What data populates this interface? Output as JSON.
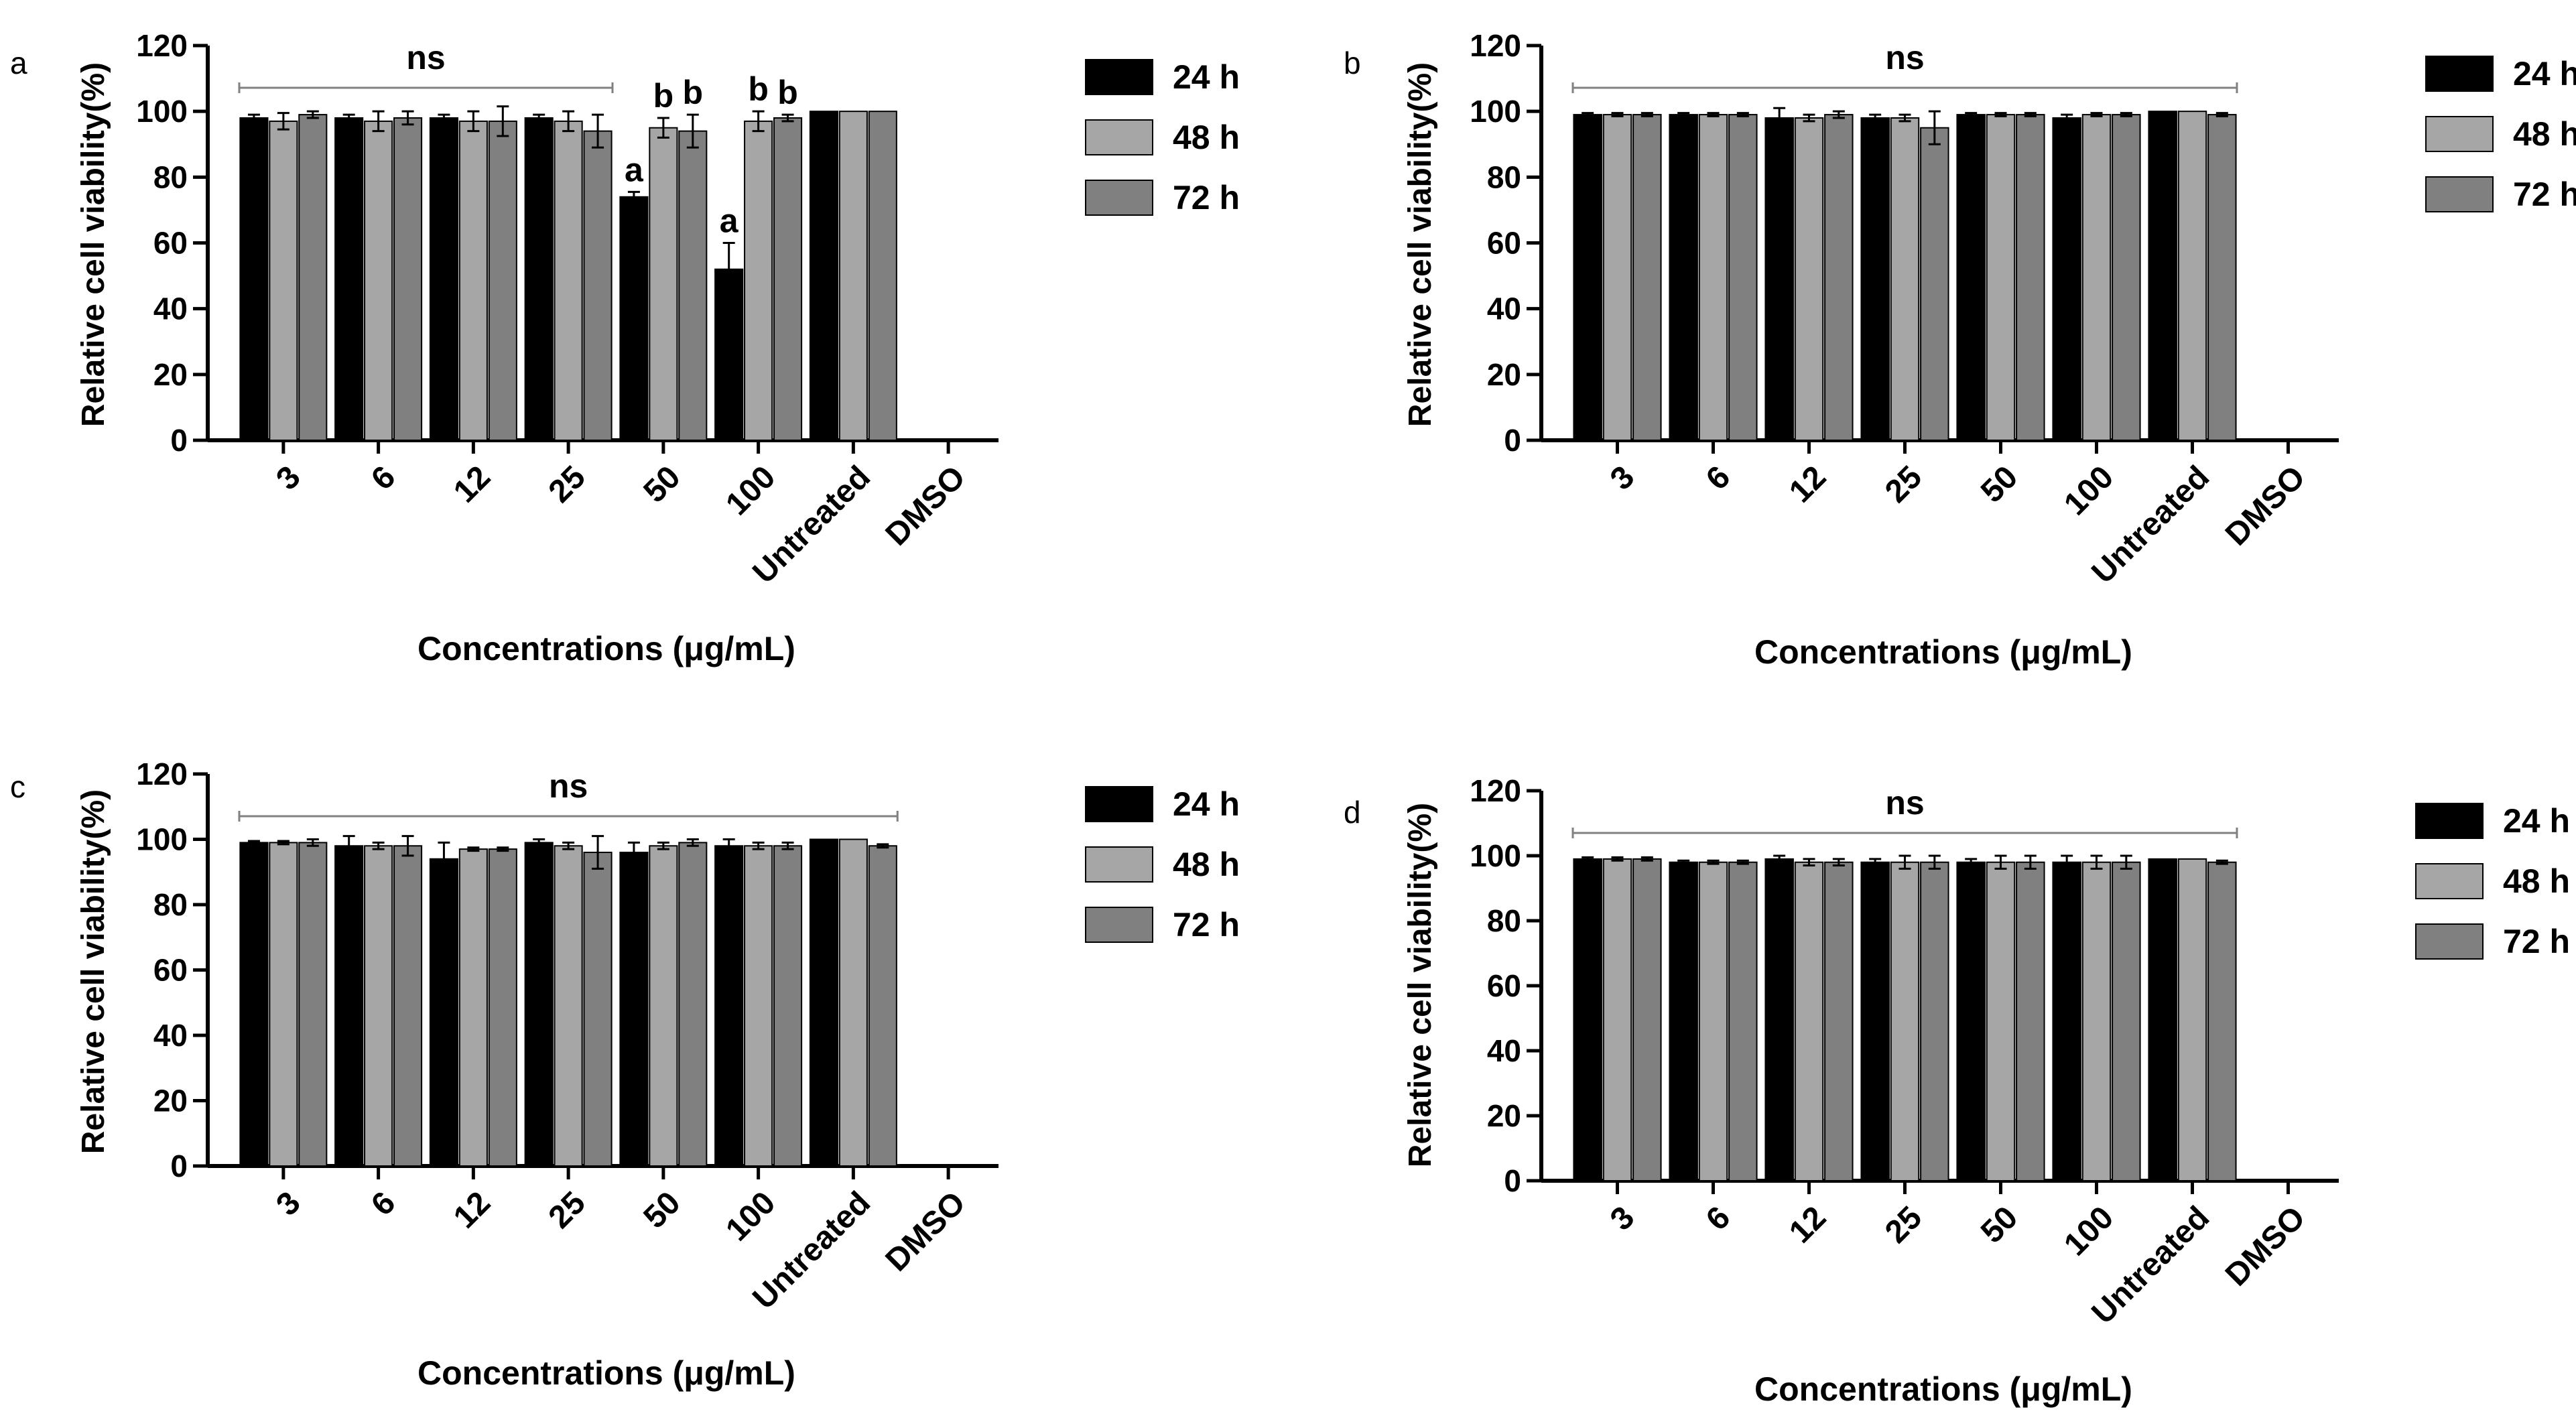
{
  "legend_labels": [
    "24 h",
    "48 h",
    "72 h"
  ],
  "colors": {
    "24 h": "#000000",
    "48 h": "#a6a6a6",
    "72 h": "#808080",
    "axis": "#000000",
    "bracket": "#808080"
  },
  "chart_data": [
    {
      "panel_label": "a",
      "type": "bar",
      "xlabel": "Concentrations (μg/mL)",
      "ylabel": "Relative cell viability(%)",
      "ylim": [
        0,
        120
      ],
      "yticks": [
        0,
        20,
        40,
        60,
        80,
        100,
        120
      ],
      "categories": [
        "3",
        "6",
        "12",
        "25",
        "50",
        "100",
        "Untreated",
        "DMSO"
      ],
      "series": [
        {
          "name": "24 h",
          "values": [
            98,
            98,
            98,
            98,
            74,
            52,
            100,
            null
          ],
          "errors": [
            1,
            1,
            1,
            1,
            1.5,
            8,
            0,
            null
          ]
        },
        {
          "name": "48 h",
          "values": [
            97,
            97,
            97,
            97,
            95,
            97,
            100,
            null
          ],
          "errors": [
            2.5,
            3,
            3,
            3,
            3,
            3,
            0,
            null
          ]
        },
        {
          "name": "72 h",
          "values": [
            99,
            98,
            97,
            94,
            94,
            98,
            100,
            null
          ],
          "errors": [
            1,
            2,
            4.5,
            5,
            5,
            1,
            0,
            null
          ]
        }
      ],
      "significance": {
        "text": "ns",
        "from_category": 0,
        "to_category": 3
      },
      "annotations": [
        {
          "text": "a",
          "category": 4,
          "series": 0
        },
        {
          "text": "b",
          "category": 4,
          "series": 1
        },
        {
          "text": "b",
          "category": 4,
          "series": 2
        },
        {
          "text": "a",
          "category": 5,
          "series": 0
        },
        {
          "text": "b",
          "category": 5,
          "series": 1
        },
        {
          "text": "b",
          "category": 5,
          "series": 2
        }
      ]
    },
    {
      "panel_label": "b",
      "type": "bar",
      "xlabel": "Concentrations (μg/mL)",
      "ylabel": "Relative cell viability(%)",
      "ylim": [
        0,
        120
      ],
      "yticks": [
        0,
        20,
        40,
        60,
        80,
        100,
        120
      ],
      "categories": [
        "3",
        "6",
        "12",
        "25",
        "50",
        "100",
        "Untreated",
        "DMSO"
      ],
      "series": [
        {
          "name": "24 h",
          "values": [
            99,
            99,
            98,
            98,
            99,
            98,
            100,
            null
          ],
          "errors": [
            0.5,
            0.5,
            3,
            1,
            0.5,
            1,
            0,
            null
          ]
        },
        {
          "name": "48 h",
          "values": [
            99,
            99,
            98,
            98,
            99,
            99,
            100,
            null
          ],
          "errors": [
            0.5,
            0.5,
            1,
            1,
            0.5,
            0.5,
            0,
            null
          ]
        },
        {
          "name": "72 h",
          "values": [
            99,
            99,
            99,
            95,
            99,
            99,
            99,
            null
          ],
          "errors": [
            0.5,
            0.5,
            1,
            5,
            0.5,
            0.5,
            0.5,
            null
          ]
        }
      ],
      "significance": {
        "text": "ns",
        "from_category": 0,
        "to_category": 6
      },
      "annotations": []
    },
    {
      "panel_label": "c",
      "type": "bar",
      "xlabel": "Concentrations (μg/mL)",
      "ylabel": "Relative cell viability(%)",
      "ylim": [
        0,
        120
      ],
      "yticks": [
        0,
        20,
        40,
        60,
        80,
        100,
        120
      ],
      "categories": [
        "3",
        "6",
        "12",
        "25",
        "50",
        "100",
        "Untreated",
        "DMSO"
      ],
      "series": [
        {
          "name": "24 h",
          "values": [
            99,
            98,
            94,
            99,
            96,
            98,
            100,
            null
          ],
          "errors": [
            0.5,
            3,
            5,
            1,
            3,
            2,
            0,
            null
          ]
        },
        {
          "name": "48 h",
          "values": [
            99,
            98,
            97,
            98,
            98,
            98,
            100,
            null
          ],
          "errors": [
            0.5,
            1,
            0.5,
            1,
            1,
            1,
            0,
            null
          ]
        },
        {
          "name": "72 h",
          "values": [
            99,
            98,
            97,
            96,
            99,
            98,
            98,
            null
          ],
          "errors": [
            1,
            3,
            0.5,
            5,
            1,
            1,
            0.5,
            null
          ]
        }
      ],
      "significance": {
        "text": "ns",
        "from_category": 0,
        "to_category": 6
      },
      "annotations": []
    },
    {
      "panel_label": "d",
      "type": "bar",
      "xlabel": "Concentrations (μg/mL)",
      "ylabel": "Relative cell viability(%)",
      "ylim": [
        0,
        120
      ],
      "yticks": [
        0,
        20,
        40,
        60,
        80,
        100,
        120
      ],
      "categories": [
        "3",
        "6",
        "12",
        "25",
        "50",
        "100",
        "Untreated",
        "DMSO"
      ],
      "series": [
        {
          "name": "24 h",
          "values": [
            99,
            98,
            99,
            98,
            98,
            98,
            99,
            null
          ],
          "errors": [
            0.5,
            0.5,
            1,
            1,
            1,
            2,
            0,
            null
          ]
        },
        {
          "name": "48 h",
          "values": [
            99,
            98,
            98,
            98,
            98,
            98,
            99,
            null
          ],
          "errors": [
            0.5,
            0.5,
            1,
            2,
            2,
            2,
            0,
            null
          ]
        },
        {
          "name": "72 h",
          "values": [
            99,
            98,
            98,
            98,
            98,
            98,
            98,
            null
          ],
          "errors": [
            0.5,
            0.5,
            1,
            2,
            2,
            2,
            0.5,
            null
          ]
        }
      ],
      "significance": {
        "text": "ns",
        "from_category": 0,
        "to_category": 6
      },
      "annotations": []
    }
  ]
}
